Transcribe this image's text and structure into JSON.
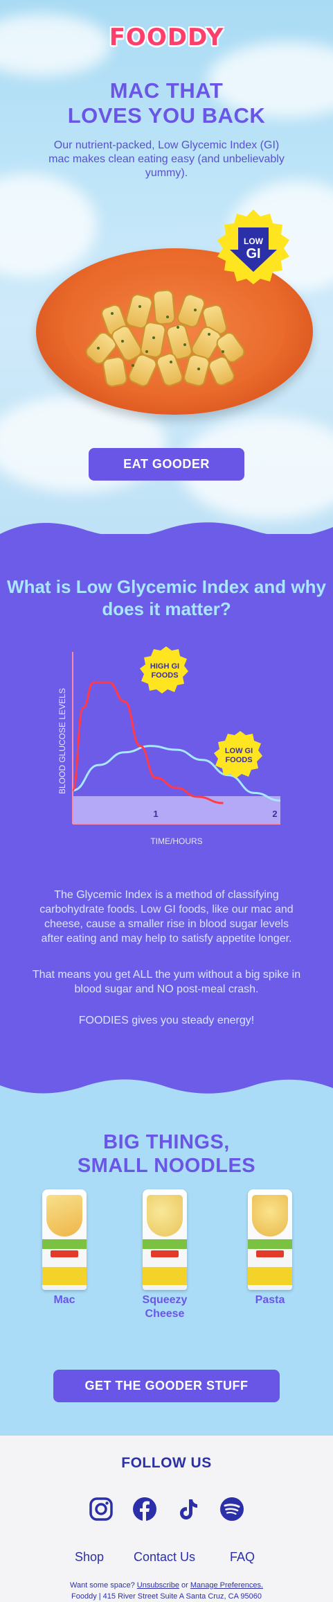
{
  "brand": {
    "logo": "FOODDY"
  },
  "hero": {
    "title_line1": "MAC THAT",
    "title_line2": "LOVES YOU BACK",
    "subtitle": "Our nutrient-packed, Low Glycemic Index (GI) mac makes clean eating easy (and unbelievably yummy).",
    "badge_line1": "LOW",
    "badge_line2": "GI",
    "cta": "EAT GOODER"
  },
  "gi": {
    "title": "What is Low Glycemic Index and why does it matter?",
    "paragraph1": "The Glycemic Index is a method of classifying carbohydrate foods. Low GI foods, like our mac and cheese, cause a smaller rise in blood sugar levels after eating  and may help to satisfy appetite longer.",
    "paragraph2": "That means you get ALL  the yum without a big spike in blood sugar and NO post-meal crash.",
    "paragraph3": "FOODIES gives you steady energy!"
  },
  "chart_data": {
    "type": "line",
    "xlabel": "TIME/HOURS",
    "ylabel": "BLOOD GLUCOSE LEVELS",
    "x_ticks": [
      "1",
      "2"
    ],
    "xlim": [
      0,
      2
    ],
    "ylim": [
      0,
      1
    ],
    "series": [
      {
        "name": "HIGH GI FOODS",
        "color": "#ff3b4b",
        "x": [
          0,
          0.1,
          0.2,
          0.35,
          0.5,
          0.65,
          0.8,
          1.0,
          1.2,
          1.45
        ],
        "y": [
          0.1,
          0.75,
          0.95,
          0.95,
          0.8,
          0.45,
          0.2,
          0.12,
          0.05,
          0.0
        ]
      },
      {
        "name": "LOW GI FOODS",
        "color": "#a9e7ff",
        "x": [
          0,
          0.25,
          0.5,
          0.75,
          1.0,
          1.25,
          1.5,
          1.75,
          2.0
        ],
        "y": [
          0.1,
          0.3,
          0.4,
          0.45,
          0.42,
          0.34,
          0.22,
          0.08,
          0.02
        ]
      }
    ],
    "grid": false,
    "legend": "callout-badges"
  },
  "products": {
    "title_line1": "BIG THINGS,",
    "title_line2": "SMALL NOODLES",
    "items": [
      {
        "name": "Mac"
      },
      {
        "name_line1": "Squeezy",
        "name_line2": "Cheese"
      },
      {
        "name": "Pasta"
      }
    ],
    "cta": "GET THE GOODER STUFF"
  },
  "footer": {
    "follow": "FOLLOW US",
    "social": [
      "instagram-icon",
      "facebook-icon",
      "tiktok-icon",
      "spotify-icon"
    ],
    "links": [
      "Shop",
      "Contact Us",
      "FAQ"
    ],
    "legal_prefix": "Want some space? ",
    "unsubscribe": "Unsubscribe",
    "legal_or": " or ",
    "manage": "Manage Preferences.",
    "address": "Fooddy | 415 River Street Suite A Santa Cruz, CA 95060"
  },
  "colors": {
    "primary": "#6a56e6",
    "purple_section": "#6c5ce7",
    "logo": "#ff3f6b",
    "sky": "#aadcf7",
    "badge_yellow": "#ffe51f",
    "footer_text": "#2b2fa8"
  }
}
